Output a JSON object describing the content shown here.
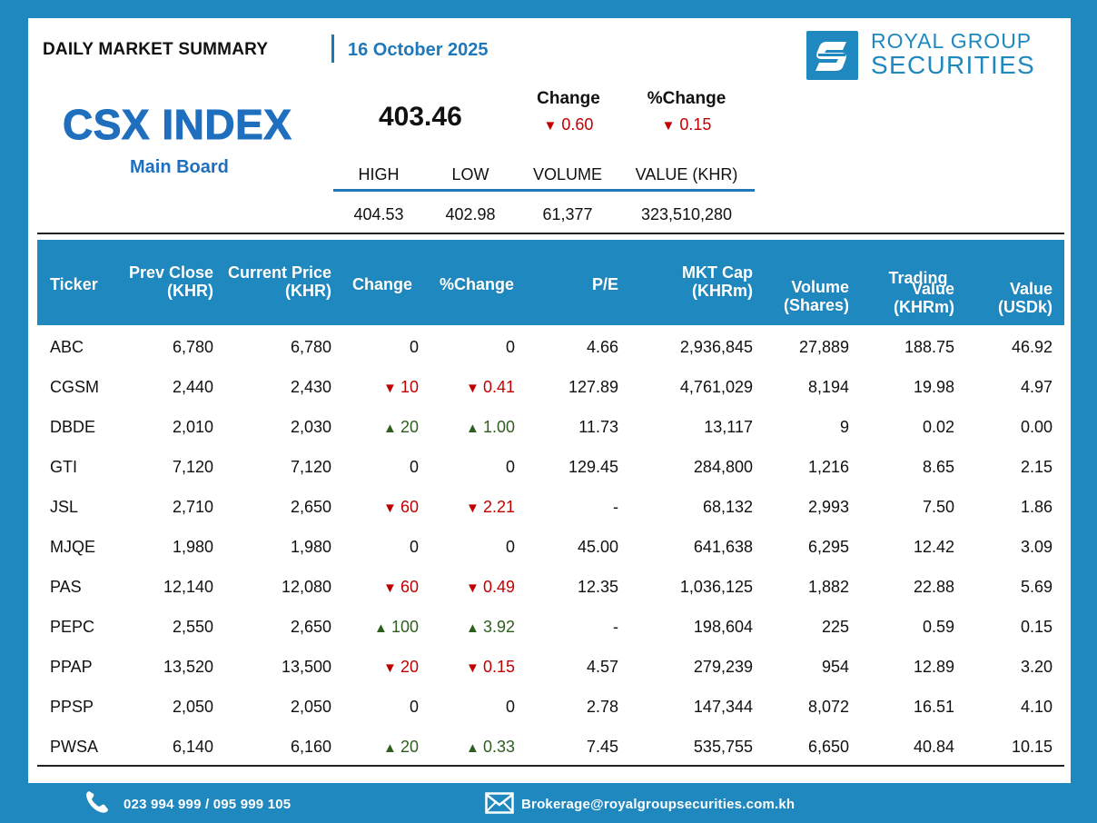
{
  "header": {
    "title": "DAILY MARKET SUMMARY",
    "date": "16 October 2025",
    "brand_line1": "ROYAL GROUP",
    "brand_line2": "SECURITIES"
  },
  "index": {
    "name": "CSX INDEX",
    "board": "Main Board",
    "value": "403.46",
    "change_label": "Change",
    "pct_change_label": "%Change",
    "change": "0.60",
    "pct_change": "0.15",
    "direction": "down",
    "stats": [
      {
        "label": "HIGH",
        "value": "404.53"
      },
      {
        "label": "LOW",
        "value": "402.98"
      },
      {
        "label": "VOLUME",
        "value": "61,377"
      },
      {
        "label": "VALUE (KHR)",
        "value": "323,510,280"
      }
    ]
  },
  "table": {
    "headers": {
      "ticker": "Ticker",
      "prev_close_1": "Prev Close",
      "prev_close_2": "(KHR)",
      "current_1": "Current Price",
      "current_2": "(KHR)",
      "change": "Change",
      "pct_change": "%Change",
      "pe": "P/E",
      "mktcap_1": "MKT Cap",
      "mktcap_2": "(KHRm)",
      "volume_1": "Volume",
      "volume_2": "(Shares)",
      "trading": "Trading",
      "value_khr_1": "Value",
      "value_khr_2": "(KHRm)",
      "value_usd_1": "Value",
      "value_usd_2": "(USDk)"
    },
    "rows": [
      {
        "ticker": "ABC",
        "prev": "6,780",
        "cur": "6,780",
        "dir": "flat",
        "chg": "0",
        "pct": "0",
        "pe": "4.66",
        "mcap": "2,936,845",
        "vol": "27,889",
        "vkhr": "188.75",
        "vusd": "46.92"
      },
      {
        "ticker": "CGSM",
        "prev": "2,440",
        "cur": "2,430",
        "dir": "down",
        "chg": "10",
        "pct": "0.41",
        "pe": "127.89",
        "mcap": "4,761,029",
        "vol": "8,194",
        "vkhr": "19.98",
        "vusd": "4.97"
      },
      {
        "ticker": "DBDE",
        "prev": "2,010",
        "cur": "2,030",
        "dir": "up",
        "chg": "20",
        "pct": "1.00",
        "pe": "11.73",
        "mcap": "13,117",
        "vol": "9",
        "vkhr": "0.02",
        "vusd": "0.00"
      },
      {
        "ticker": "GTI",
        "prev": "7,120",
        "cur": "7,120",
        "dir": "flat",
        "chg": "0",
        "pct": "0",
        "pe": "129.45",
        "mcap": "284,800",
        "vol": "1,216",
        "vkhr": "8.65",
        "vusd": "2.15"
      },
      {
        "ticker": "JSL",
        "prev": "2,710",
        "cur": "2,650",
        "dir": "down",
        "chg": "60",
        "pct": "2.21",
        "pe": "-",
        "mcap": "68,132",
        "vol": "2,993",
        "vkhr": "7.50",
        "vusd": "1.86"
      },
      {
        "ticker": "MJQE",
        "prev": "1,980",
        "cur": "1,980",
        "dir": "flat",
        "chg": "0",
        "pct": "0",
        "pe": "45.00",
        "mcap": "641,638",
        "vol": "6,295",
        "vkhr": "12.42",
        "vusd": "3.09"
      },
      {
        "ticker": "PAS",
        "prev": "12,140",
        "cur": "12,080",
        "dir": "down",
        "chg": "60",
        "pct": "0.49",
        "pe": "12.35",
        "mcap": "1,036,125",
        "vol": "1,882",
        "vkhr": "22.88",
        "vusd": "5.69"
      },
      {
        "ticker": "PEPC",
        "prev": "2,550",
        "cur": "2,650",
        "dir": "up",
        "chg": "100",
        "pct": "3.92",
        "pe": "-",
        "mcap": "198,604",
        "vol": "225",
        "vkhr": "0.59",
        "vusd": "0.15"
      },
      {
        "ticker": "PPAP",
        "prev": "13,520",
        "cur": "13,500",
        "dir": "down",
        "chg": "20",
        "pct": "0.15",
        "pe": "4.57",
        "mcap": "279,239",
        "vol": "954",
        "vkhr": "12.89",
        "vusd": "3.20"
      },
      {
        "ticker": "PPSP",
        "prev": "2,050",
        "cur": "2,050",
        "dir": "flat",
        "chg": "0",
        "pct": "0",
        "pe": "2.78",
        "mcap": "147,344",
        "vol": "8,072",
        "vkhr": "16.51",
        "vusd": "4.10"
      },
      {
        "ticker": "PWSA",
        "prev": "6,140",
        "cur": "6,160",
        "dir": "up",
        "chg": "20",
        "pct": "0.33",
        "pe": "7.45",
        "mcap": "535,755",
        "vol": "6,650",
        "vkhr": "40.84",
        "vusd": "10.15"
      }
    ]
  },
  "footer": {
    "phone": "023 994 999 / 095 999 105",
    "email": "Brokerage@royalgroupsecurities.com.kh",
    "phone_icon": "phone-icon",
    "email_icon": "mail-icon"
  },
  "colors": {
    "brand_blue": "#1f88bf",
    "index_blue": "#1f6fbe",
    "down_red": "#c00000",
    "up_green": "#2e5e1e"
  }
}
